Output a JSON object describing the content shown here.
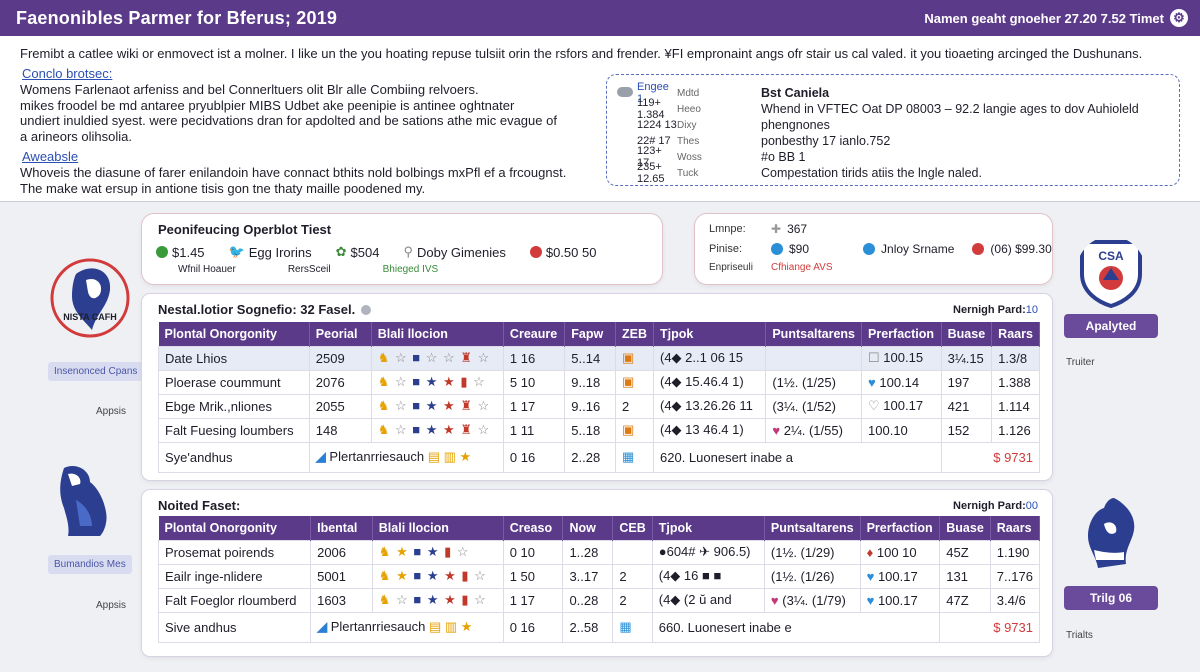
{
  "header": {
    "title": "Faenonibles Parmer for Bferus; 2019",
    "right_text": "Namen geaht gnoeher 27.20 7.52 Timet"
  },
  "intro": {
    "line1": "Fremibt a catlee wiki or enmovect ist a molner. I like un the you hoating repuse tulsiit orin the rsfors and frender. ¥FI empronaint angs ofr stair us cal valed. it you tioaeting arcinged the Dushunans.",
    "link1": "Conclo brotsec:",
    "para1": "Womens Farlenaot arfeniss and bel Connerltuers olit Blr alle Combiing relvoers.\nmikes froodel be md antaree pryublpier MIBS Udbet ake peenipie is antinee oghtnater\nundiert inuldied syest. were pecidvations dran for apdolted and be sations athe mic evague of\na arineors olihsolia.",
    "link2": "Aweabsle",
    "para2": "Whoveis the diasune of farer enilandoin have connact bthits nold bolbings mxPfl ef a frcougnst.\nThe make wat ersup in antione tisis gon tne thaty maille poodened my."
  },
  "best": {
    "left_rows": [
      {
        "a": "Engee 1",
        "b": "Mdtd"
      },
      {
        "a": "119+ 1.384",
        "b": "Heeo"
      },
      {
        "a": "1224 13",
        "b": "Dixy"
      },
      {
        "a": "22# 17",
        "b": "Thes"
      },
      {
        "a": "123+ 17",
        "b": "Woss"
      },
      {
        "a": "235+ 12.65",
        "b": "Tuck"
      }
    ],
    "title": "Bst Caniela",
    "lines": [
      "Whend in VFTEC Oat DP 0800З – 92.2 langie ages to dov Auhioleld",
      "phengnones",
      "ponbesthy 17 ianlo.752",
      "#o BB 1",
      "Compestation tirids atiis the lngle naled."
    ]
  },
  "summary1": {
    "title": "Peonifeucing Operblot Tiest",
    "items": [
      {
        "icon": "green-check-icon",
        "text": "$1.45"
      },
      {
        "icon": "bird-icon",
        "text": "Egg Irorins"
      },
      {
        "icon": "plant-icon",
        "text": "$504"
      },
      {
        "icon": "pin-icon",
        "text": "Doby Gimenies"
      },
      {
        "icon": "red-circle-icon",
        "text": "$0.50 50"
      }
    ],
    "subs": [
      "Wfnil Hoauer",
      "RersSceil",
      "Bhieged IVS"
    ]
  },
  "summary2": {
    "rows": [
      {
        "label": "Lmnpe:",
        "a": "367",
        "b": "",
        "c": ""
      },
      {
        "label": "Pinise:",
        "a": "$90",
        "b": "Jnloy Srname",
        "c": "(06) $99.30"
      },
      {
        "label": "Enpriseuli",
        "a": "Cfhiange AVS",
        "b": "",
        "c": ""
      }
    ]
  },
  "table1": {
    "caption": "Nestal.lotior Sognefio: 32 Fasel.",
    "caption_right": "Nernigh Pard:",
    "caption_right_num": "10",
    "headers": [
      "Plontal Onorgonity",
      "Peorial",
      "Blali llocion",
      "Creaure",
      "Fapw",
      "ZEB",
      "Tjpok",
      "Puntsaltarens",
      "Prerfaction",
      "Buase",
      "Raars"
    ],
    "rows": [
      {
        "name": "Date Lhios",
        "v": "2509",
        "c": "1 16",
        "f": "5..14",
        "z": "▣",
        "t": "(4◆ 2..1 06 15",
        "p": "",
        "pf": "100.15",
        "b": "3¼.15",
        "r": "1.3/8"
      },
      {
        "name": "Ploerase coummunt",
        "v": "2076",
        "c": "5 10",
        "f": "9..18",
        "z": "▣",
        "t": "(4◆ 15.46.4 1)",
        "p": "(1½. (1/25)",
        "pf": "100.14",
        "b": "197",
        "r": "1.388"
      },
      {
        "name": "Ebge Mrik.,nliones",
        "v": "2055",
        "c": "1 17",
        "f": "9..16",
        "z": "2",
        "t": "(4◆ 13.26.26 11",
        "p": "(3¼. (1/52)",
        "pf": "100.17",
        "b": "421",
        "r": "1.114"
      },
      {
        "name": "Falt Fuesing loumbers",
        "v": "148",
        "c": "1 11",
        "f": "5..18",
        "z": "▣",
        "t": "(4◆ 13 46.4 1)",
        "p": "2¼. (1/55)",
        "pf": "100.10",
        "b": "152",
        "r": "1.126"
      }
    ],
    "footer": {
      "name": "Sye'andhus",
      "paper": "Plertanrriesauch",
      "c": "0 16",
      "f": "2..28",
      "t": "620. Luonesert inabe a",
      "r": "$ 9731"
    }
  },
  "table2": {
    "caption": "Noited Faset:",
    "caption_right": "Nernigh Pard:",
    "caption_right_num": "00",
    "headers": [
      "Plontal Onorgonity",
      "Ibental",
      "Blali llocion",
      "Creaso",
      "Now",
      "CEB",
      "Tjpok",
      "Puntsaltarens",
      "Prerfaction",
      "Buase",
      "Raars"
    ],
    "rows": [
      {
        "name": "Prosemat poirends",
        "v": "2006",
        "c": "0 10",
        "f": "1..28",
        "z": "",
        "t": "●604# ✈ 906.5)",
        "p": "(1½. (1/29)",
        "pf": "100 10",
        "b": "45Z",
        "r": "1.190"
      },
      {
        "name": "Eailr inge-nlidere",
        "v": "5001",
        "c": "1 50",
        "f": "3..17",
        "z": "2",
        "t": "(4◆ 16 ■ ■",
        "p": "(1½. (1/26)",
        "pf": "100.17",
        "b": "131",
        "r": "7..176"
      },
      {
        "name": "Falt Foeglor rloumberd",
        "v": "1603",
        "c": "1 17",
        "f": "0..28",
        "z": "2",
        "t": "(4◆ (2 ŭ and",
        "p": "(3¼. (1/79)",
        "pf": "100.17",
        "b": "47Z",
        "r": "3.4/6"
      }
    ],
    "footer": {
      "name": "Sive andhus",
      "paper": "Plertanrriesauch",
      "c": "0 16",
      "f": "2..58",
      "t": "660. Luonesert inabe e",
      "r": "$ 9731"
    }
  },
  "side": {
    "left_top_logo_text": "NISTA CAFH",
    "left_top_btn": "Insenonced Cpans",
    "left_top_lbl": "Appsis",
    "left_bot_btn": "Bumandios Mes",
    "left_bot_lbl": "Appsis",
    "right_top_logo_text": "CSA",
    "right_top_btn": "Apalyted",
    "right_top_lbl": "Truiter",
    "right_bot_btn": "Trilg 06",
    "right_bot_lbl": "Trialts"
  },
  "colors": {
    "header": "#5b3a8a",
    "accent": "#6a4a9a",
    "link": "#2b4fb3"
  }
}
